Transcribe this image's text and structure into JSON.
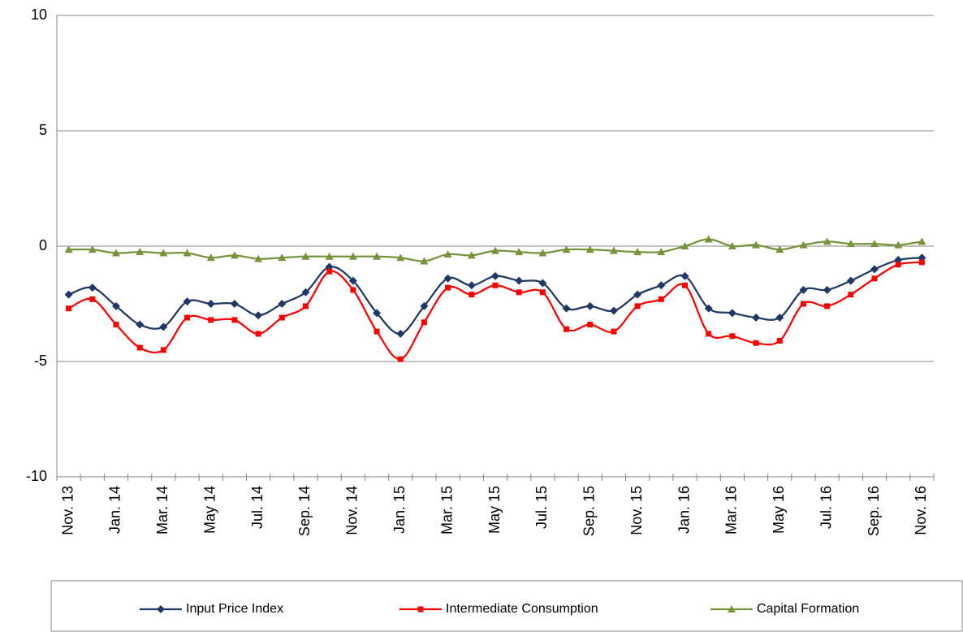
{
  "chart_data": {
    "type": "line",
    "categories": [
      "Nov. 13",
      null,
      "Jan. 14",
      null,
      "Mar. 14",
      null,
      "May 14",
      null,
      "Jul. 14",
      null,
      "Sep. 14",
      null,
      "Nov. 14",
      null,
      "Jan. 15",
      null,
      "Mar. 15",
      null,
      "May 15",
      null,
      "Jul. 15",
      null,
      "Sep. 15",
      null,
      "Nov. 15",
      null,
      "Jan. 16",
      null,
      "Mar. 16",
      null,
      "May 16",
      null,
      "Jul. 16",
      null,
      "Sep. 16",
      null,
      "Nov. 16"
    ],
    "series": [
      {
        "name": "Input Price Index",
        "color": "#1f3864",
        "marker": "diamond",
        "values": [
          -2.1,
          -1.8,
          -2.6,
          -3.4,
          -3.5,
          -2.4,
          -2.5,
          -2.5,
          -3.0,
          -2.5,
          -2.0,
          -0.9,
          -1.5,
          -2.9,
          -3.8,
          -2.6,
          -1.4,
          -1.7,
          -1.3,
          -1.5,
          -1.6,
          -2.7,
          -2.6,
          -2.8,
          -2.1,
          -1.7,
          -1.3,
          -2.7,
          -2.9,
          -3.1,
          -3.1,
          -1.9,
          -1.9,
          -1.5,
          -1.0,
          -0.6,
          -0.5
        ]
      },
      {
        "name": "Intermediate Consumption",
        "color": "#ff0000",
        "marker": "square",
        "values": [
          -2.7,
          -2.3,
          -3.4,
          -4.4,
          -4.5,
          -3.1,
          -3.2,
          -3.2,
          -3.8,
          -3.1,
          -2.6,
          -1.1,
          -1.9,
          -3.7,
          -4.9,
          -3.3,
          -1.8,
          -2.1,
          -1.7,
          -2.0,
          -2.0,
          -3.6,
          -3.4,
          -3.7,
          -2.6,
          -2.3,
          -1.7,
          -3.8,
          -3.9,
          -4.2,
          -4.1,
          -2.5,
          -2.6,
          -2.1,
          -1.4,
          -0.8,
          -0.7
        ]
      },
      {
        "name": "Capital Formation",
        "color": "#77933c",
        "marker": "triangle",
        "values": [
          -0.15,
          -0.15,
          -0.3,
          -0.25,
          -0.3,
          -0.3,
          -0.5,
          -0.4,
          -0.55,
          -0.5,
          -0.45,
          -0.45,
          -0.45,
          -0.45,
          -0.5,
          -0.65,
          -0.35,
          -0.4,
          -0.2,
          -0.25,
          -0.3,
          -0.15,
          -0.15,
          -0.2,
          -0.25,
          -0.25,
          0,
          0.3,
          0,
          0.05,
          -0.15,
          0.05,
          0.2,
          0.1,
          0.1,
          0.05,
          0.2
        ]
      }
    ],
    "ylim": [
      -10,
      10
    ],
    "yticks": [
      -10,
      -5,
      0,
      5,
      10
    ],
    "grid": true
  }
}
